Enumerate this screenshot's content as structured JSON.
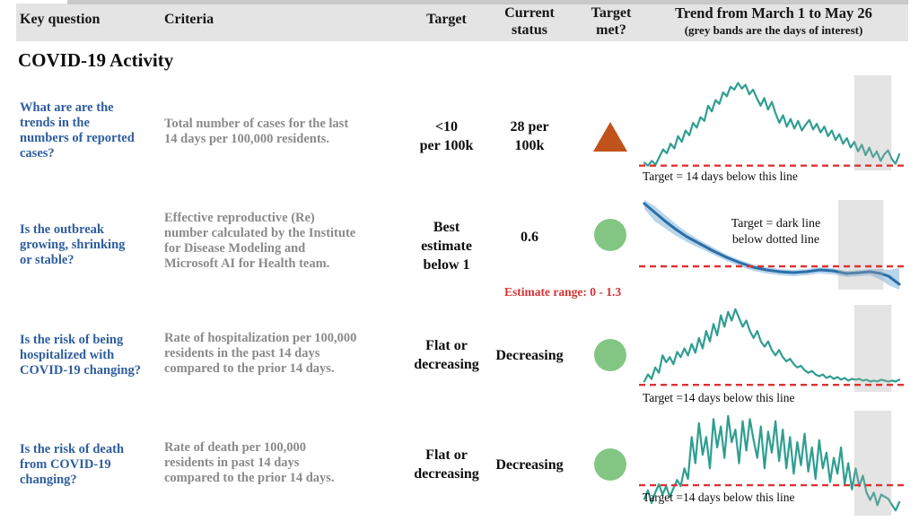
{
  "header": {
    "key_question": "Key question",
    "criteria": "Criteria",
    "target": "Target",
    "current_status": "Current\nstatus",
    "target_met": "Target\nmet?",
    "trend_title": "Trend from March 1 to May 26",
    "trend_subtitle": "(grey bands are the days of interest)"
  },
  "section_title": "COVID-19 Activity",
  "rows": [
    {
      "question": "What are are the\ntrends in the\nnumbers of reported\ncases?",
      "criteria": "Total number of cases for the last\n14 days per 100,000 residents.",
      "target": "<10\nper 100k",
      "status": "28 per\n100k",
      "target_met": "no",
      "symbol": "orange-triangle"
    },
    {
      "question": "Is the outbreak\ngrowing, shrinking\nor stable?",
      "criteria": "Effective reproductive (Re)\nnumber calculated by the Institute\nfor Disease Modeling and\nMicrosoft AI for Health team.",
      "target": "Best\nestimate\nbelow 1",
      "status": "0.6",
      "target_met": "yes",
      "symbol": "green-circle"
    },
    {
      "question": "Is the risk of being\nhospitalized with\nCOVID-19 changing?",
      "criteria": "Rate of hospitalization per 100,000\nresidents in the past 14 days\ncompared to the prior 14 days.",
      "target": "Flat or\ndecreasing",
      "status": "Decreasing",
      "target_met": "yes",
      "symbol": "green-circle"
    },
    {
      "question": "Is the risk of death\nfrom COVID-19\nchanging?",
      "criteria": "Rate of death per 100,000\nresidents in past 14 days\ncompared to the prior 14 days.",
      "target": "Flat or\ndecreasing",
      "status": "Decreasing",
      "target_met": "yes",
      "symbol": "green-circle"
    }
  ],
  "annotations": {
    "estimate_range": "Estimate range: 0 - 1.3"
  },
  "colors": {
    "question_blue": "#2e5e9e",
    "criteria_gray": "#8a8a8a",
    "header_bg": "#e4e4e4",
    "target_met_green": "#83c683",
    "target_not_met_orange": "#c0531b",
    "trend_teal": "#2f9e90",
    "re_line_blue": "#2a6fa8",
    "re_band_blue": "#b9d5ea",
    "target_line_red": "#dd3333",
    "days_band_gray": "#e6e6e6"
  },
  "chart_data": [
    {
      "name": "reported-cases-trend",
      "type": "line",
      "x_label": "March 1 to May 26",
      "description": "Daily reported cases trend: rises from near target line to a peak about one third in, then noisy decline back toward the target line; grey band marks days of interest.",
      "line_color": "#2f9e90",
      "line_width": 2.2,
      "x_range_pct": [
        2,
        98
      ],
      "values_pct": [
        92,
        95,
        90,
        94,
        86,
        78,
        82,
        72,
        77,
        64,
        70,
        58,
        63,
        50,
        55,
        44,
        48,
        32,
        38,
        26,
        30,
        18,
        22,
        12,
        15,
        8,
        14,
        10,
        20,
        15,
        24,
        32,
        24,
        36,
        28,
        40,
        50,
        42,
        54,
        46,
        56,
        48,
        58,
        52,
        47,
        57,
        51,
        60,
        54,
        64,
        58,
        68,
        62,
        72,
        66,
        76,
        70,
        80,
        73,
        84,
        76,
        86,
        80,
        90,
        83,
        79,
        88,
        93,
        83
      ],
      "target_line_y_pct": 95,
      "target_line_color": "#dd3333",
      "gray_band_x_pct": [
        81,
        95
      ],
      "caption": "Target = 14 days below this line"
    },
    {
      "name": "re-number-trend",
      "type": "line",
      "x_label": "March 1 to May 26",
      "description": "Effective reproductive number (Re) best estimate with confidence band: starts high, declines smoothly below the dotted target line and stays slightly below it; band widens at the end.",
      "line_color": "#2a6fa8",
      "line_width": 3,
      "points_pct": [
        [
          2,
          4
        ],
        [
          6,
          14
        ],
        [
          10,
          24
        ],
        [
          14,
          33
        ],
        [
          18,
          41
        ],
        [
          23,
          49
        ],
        [
          28,
          57
        ],
        [
          33,
          64
        ],
        [
          38,
          70
        ],
        [
          43,
          75
        ],
        [
          48,
          78
        ],
        [
          53,
          80
        ],
        [
          58,
          81
        ],
        [
          63,
          80
        ],
        [
          68,
          78
        ],
        [
          73,
          79
        ],
        [
          78,
          82
        ],
        [
          83,
          81
        ],
        [
          87,
          80
        ],
        [
          91,
          82
        ],
        [
          94,
          85
        ],
        [
          98,
          94
        ]
      ],
      "band_color": "#b9d5ea",
      "band_polygon_pct": [
        [
          2,
          0
        ],
        [
          6,
          7
        ],
        [
          10,
          17
        ],
        [
          14,
          27
        ],
        [
          18,
          36
        ],
        [
          23,
          45
        ],
        [
          28,
          53
        ],
        [
          33,
          61
        ],
        [
          38,
          67
        ],
        [
          43,
          72
        ],
        [
          48,
          75
        ],
        [
          53,
          77
        ],
        [
          58,
          78
        ],
        [
          63,
          77
        ],
        [
          68,
          75
        ],
        [
          73,
          76
        ],
        [
          78,
          79
        ],
        [
          83,
          78
        ],
        [
          87,
          77
        ],
        [
          91,
          77
        ],
        [
          94,
          78
        ],
        [
          98,
          76
        ],
        [
          98,
          100
        ],
        [
          94,
          95
        ],
        [
          91,
          89
        ],
        [
          87,
          84
        ],
        [
          83,
          85
        ],
        [
          78,
          86
        ],
        [
          73,
          83
        ],
        [
          68,
          82
        ],
        [
          63,
          84
        ],
        [
          58,
          85
        ],
        [
          53,
          84
        ],
        [
          48,
          82
        ],
        [
          43,
          79
        ],
        [
          38,
          74
        ],
        [
          33,
          68
        ],
        [
          28,
          61
        ],
        [
          23,
          54
        ],
        [
          18,
          47
        ],
        [
          14,
          40
        ],
        [
          10,
          32
        ],
        [
          6,
          24
        ],
        [
          2,
          10
        ]
      ],
      "target_line_y_pct": 74,
      "target_line_color": "#dd3333",
      "gray_band_x_pct": [
        75,
        92
      ],
      "annotation": "Target = dark line\nbelow dotted line"
    },
    {
      "name": "hospitalization-trend",
      "type": "line",
      "x_label": "March 1 to May 26",
      "description": "Hospitalization rate trend: spiky rise to a peak about one third in, then steady decline to hover just above the target line for the rest of the period.",
      "line_color": "#2f9e90",
      "line_width": 2.2,
      "x_range_pct": [
        2,
        98
      ],
      "values_pct": [
        88,
        80,
        85,
        72,
        78,
        58,
        66,
        60,
        68,
        54,
        60,
        50,
        58,
        45,
        55,
        38,
        50,
        30,
        42,
        22,
        35,
        12,
        25,
        8,
        18,
        5,
        15,
        25,
        18,
        30,
        38,
        30,
        42,
        48,
        42,
        52,
        58,
        52,
        60,
        65,
        62,
        68,
        72,
        70,
        75,
        78,
        76,
        80,
        82,
        80,
        84,
        82,
        85,
        83,
        86,
        84,
        87,
        85,
        86,
        85,
        87,
        86,
        88,
        87,
        88,
        86,
        87,
        88,
        87,
        88,
        86
      ],
      "target_line_y_pct": 92,
      "target_line_color": "#dd3333",
      "gray_band_x_pct": [
        81,
        95
      ],
      "caption": "Target =14 days below this line"
    },
    {
      "name": "death-rate-trend",
      "type": "line",
      "x_label": "March 1 to May 26",
      "description": "Death rate trend: highly volatile spikes oscillating above the target line through the middle of the period, then dropping and staying below the line at the end.",
      "line_color": "#2f9e90",
      "line_width": 2.2,
      "x_range_pct": [
        2,
        98
      ],
      "values_pct": [
        84,
        76,
        88,
        78,
        70,
        80,
        72,
        82,
        74,
        66,
        72,
        55,
        65,
        25,
        50,
        12,
        42,
        25,
        55,
        8,
        35,
        15,
        45,
        5,
        30,
        18,
        50,
        10,
        38,
        8,
        28,
        45,
        15,
        55,
        20,
        40,
        10,
        48,
        18,
        55,
        25,
        60,
        30,
        52,
        22,
        58,
        35,
        65,
        28,
        55,
        40,
        68,
        45,
        60,
        35,
        70,
        50,
        75,
        55,
        72,
        62,
        78,
        85,
        78,
        90,
        80,
        82,
        84,
        90,
        95,
        87
      ],
      "target_line_y_pct": 71,
      "target_line_color": "#dd3333",
      "gray_band_x_pct": [
        81,
        95
      ],
      "caption": "Target =14 days below this line"
    }
  ]
}
